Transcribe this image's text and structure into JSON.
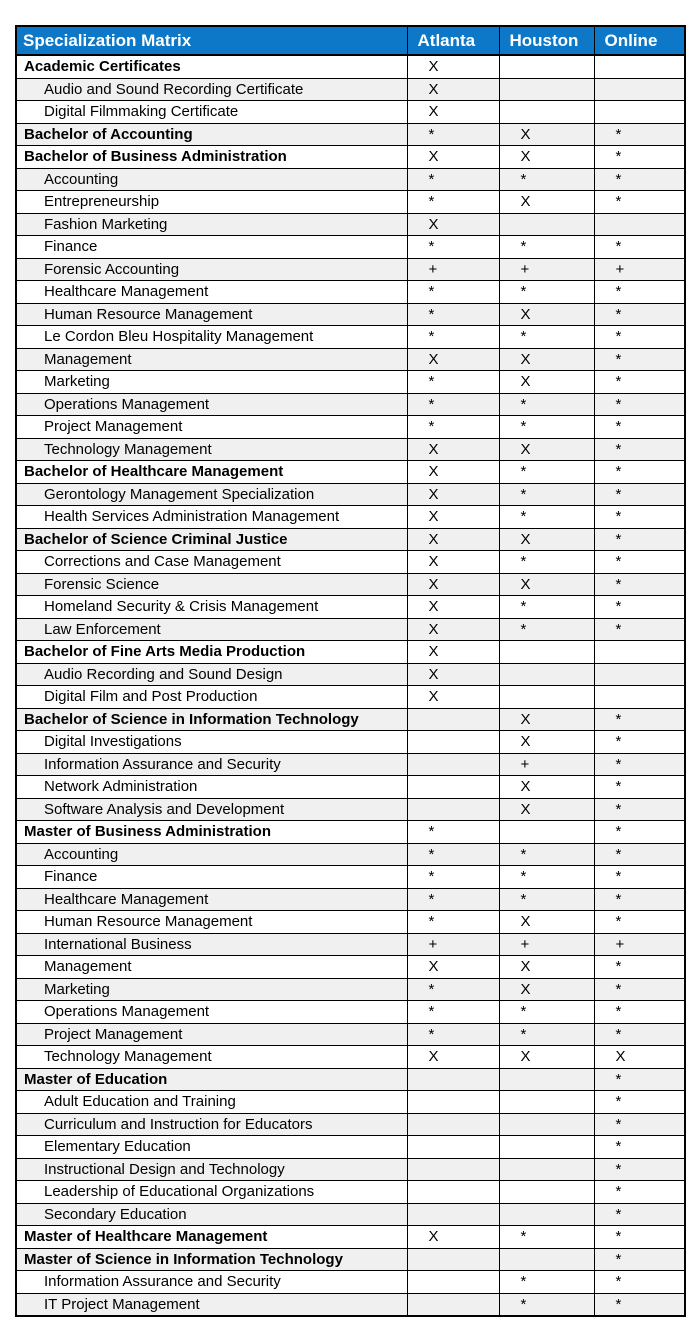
{
  "colors": {
    "header_bg": "#0d78c8",
    "header_fg": "#ffffff",
    "band_bg": "#f0f0f0",
    "border": "#000000"
  },
  "chart_data": {
    "type": "table",
    "title": "Specialization Matrix",
    "columns": [
      "Specialization Matrix",
      "Atlanta",
      "Houston",
      "Online"
    ],
    "marker_meanings_visible": false,
    "rows": [
      {
        "label": "Academic Certificates",
        "bold": true,
        "marks": [
          "X",
          "",
          ""
        ]
      },
      {
        "label": "Audio and Sound Recording Certificate",
        "bold": false,
        "marks": [
          "X",
          "",
          ""
        ]
      },
      {
        "label": "Digital Filmmaking Certificate",
        "bold": false,
        "marks": [
          "X",
          "",
          ""
        ]
      },
      {
        "label": "Bachelor of Accounting",
        "bold": true,
        "marks": [
          "*",
          "X",
          "*"
        ]
      },
      {
        "label": "Bachelor of Business Administration",
        "bold": true,
        "marks": [
          "X",
          "X",
          "*"
        ]
      },
      {
        "label": "Accounting",
        "bold": false,
        "marks": [
          "*",
          "*",
          "*"
        ]
      },
      {
        "label": "Entrepreneurship",
        "bold": false,
        "marks": [
          "*",
          "X",
          "*"
        ]
      },
      {
        "label": "Fashion Marketing",
        "bold": false,
        "marks": [
          "X",
          "",
          ""
        ]
      },
      {
        "label": "Finance",
        "bold": false,
        "marks": [
          "*",
          "*",
          "*"
        ]
      },
      {
        "label": "Forensic Accounting",
        "bold": false,
        "marks": [
          "+",
          "+",
          "+"
        ]
      },
      {
        "label": "Healthcare Management",
        "bold": false,
        "marks": [
          "*",
          "*",
          "*"
        ]
      },
      {
        "label": "Human Resource Management",
        "bold": false,
        "marks": [
          "*",
          "X",
          "*"
        ]
      },
      {
        "label": "Le Cordon Bleu Hospitality Management",
        "bold": false,
        "marks": [
          "*",
          "*",
          "*"
        ]
      },
      {
        "label": "Management",
        "bold": false,
        "marks": [
          "X",
          "X",
          "*"
        ]
      },
      {
        "label": "Marketing",
        "bold": false,
        "marks": [
          "*",
          "X",
          "*"
        ]
      },
      {
        "label": "Operations Management",
        "bold": false,
        "marks": [
          "*",
          "*",
          "*"
        ]
      },
      {
        "label": "Project Management",
        "bold": false,
        "marks": [
          "*",
          "*",
          "*"
        ]
      },
      {
        "label": "Technology Management",
        "bold": false,
        "marks": [
          "X",
          "X",
          "*"
        ]
      },
      {
        "label": "Bachelor of Healthcare Management",
        "bold": true,
        "marks": [
          "X",
          "*",
          "*"
        ]
      },
      {
        "label": "Gerontology Management Specialization",
        "bold": false,
        "marks": [
          "X",
          "*",
          "*"
        ]
      },
      {
        "label": "Health Services Administration Management",
        "bold": false,
        "marks": [
          "X",
          "*",
          "*"
        ]
      },
      {
        "label": "Bachelor of Science Criminal Justice",
        "bold": true,
        "marks": [
          "X",
          "X",
          "*"
        ]
      },
      {
        "label": "Corrections and Case Management",
        "bold": false,
        "marks": [
          "X",
          "*",
          "*"
        ]
      },
      {
        "label": "Forensic Science",
        "bold": false,
        "marks": [
          "X",
          "X",
          "*"
        ]
      },
      {
        "label": "Homeland Security & Crisis Management",
        "bold": false,
        "marks": [
          "X",
          "*",
          "*"
        ]
      },
      {
        "label": "Law Enforcement",
        "bold": false,
        "marks": [
          "X",
          "*",
          "*"
        ]
      },
      {
        "label": "Bachelor of Fine Arts Media Production",
        "bold": true,
        "marks": [
          "X",
          "",
          ""
        ]
      },
      {
        "label": "Audio Recording and Sound Design",
        "bold": false,
        "marks": [
          "X",
          "",
          ""
        ]
      },
      {
        "label": "Digital Film and Post Production",
        "bold": false,
        "marks": [
          "X",
          "",
          ""
        ]
      },
      {
        "label": "Bachelor of Science in Information Technology",
        "bold": true,
        "marks": [
          "",
          "X",
          "*"
        ]
      },
      {
        "label": "Digital Investigations",
        "bold": false,
        "marks": [
          "",
          "X",
          "*"
        ]
      },
      {
        "label": "Information Assurance and Security",
        "bold": false,
        "marks": [
          "",
          "+",
          "*"
        ]
      },
      {
        "label": "Network Administration",
        "bold": false,
        "marks": [
          "",
          "X",
          "*"
        ]
      },
      {
        "label": "Software Analysis and Development",
        "bold": false,
        "marks": [
          "",
          "X",
          "*"
        ]
      },
      {
        "label": "Master of Business Administration",
        "bold": true,
        "marks": [
          "*",
          "",
          "*"
        ]
      },
      {
        "label": "Accounting",
        "bold": false,
        "marks": [
          "*",
          "*",
          "*"
        ]
      },
      {
        "label": "Finance",
        "bold": false,
        "marks": [
          "*",
          "*",
          "*"
        ]
      },
      {
        "label": "Healthcare Management",
        "bold": false,
        "marks": [
          "*",
          "*",
          "*"
        ]
      },
      {
        "label": "Human Resource Management",
        "bold": false,
        "marks": [
          "*",
          "X",
          "*"
        ]
      },
      {
        "label": "International Business",
        "bold": false,
        "marks": [
          "+",
          "+",
          "+"
        ]
      },
      {
        "label": "Management",
        "bold": false,
        "marks": [
          "X",
          "X",
          "*"
        ]
      },
      {
        "label": "Marketing",
        "bold": false,
        "marks": [
          "*",
          "X",
          "*"
        ]
      },
      {
        "label": "Operations Management",
        "bold": false,
        "marks": [
          "*",
          "*",
          "*"
        ]
      },
      {
        "label": "Project Management",
        "bold": false,
        "marks": [
          "*",
          "*",
          "*"
        ]
      },
      {
        "label": "Technology Management",
        "bold": false,
        "marks": [
          "X",
          "X",
          "X"
        ]
      },
      {
        "label": "Master of Education",
        "bold": true,
        "marks": [
          "",
          "",
          "*"
        ]
      },
      {
        "label": "Adult Education and Training",
        "bold": false,
        "marks": [
          "",
          "",
          "*"
        ]
      },
      {
        "label": "Curriculum and Instruction for Educators",
        "bold": false,
        "marks": [
          "",
          "",
          "*"
        ]
      },
      {
        "label": "Elementary Education",
        "bold": false,
        "marks": [
          "",
          "",
          "*"
        ]
      },
      {
        "label": "Instructional Design and Technology",
        "bold": false,
        "marks": [
          "",
          "",
          "*"
        ]
      },
      {
        "label": "Leadership of Educational Organizations",
        "bold": false,
        "marks": [
          "",
          "",
          "*"
        ]
      },
      {
        "label": "Secondary Education",
        "bold": false,
        "marks": [
          "",
          "",
          "*"
        ]
      },
      {
        "label": "Master of Healthcare Management",
        "bold": true,
        "marks": [
          "X",
          "*",
          "*"
        ]
      },
      {
        "label": "Master of Science in Information Technology",
        "bold": true,
        "marks": [
          "",
          "",
          "*"
        ]
      },
      {
        "label": "Information Assurance and Security",
        "bold": false,
        "marks": [
          "",
          "*",
          "*"
        ]
      },
      {
        "label": "IT Project Management",
        "bold": false,
        "marks": [
          "",
          "*",
          "*"
        ]
      }
    ]
  }
}
